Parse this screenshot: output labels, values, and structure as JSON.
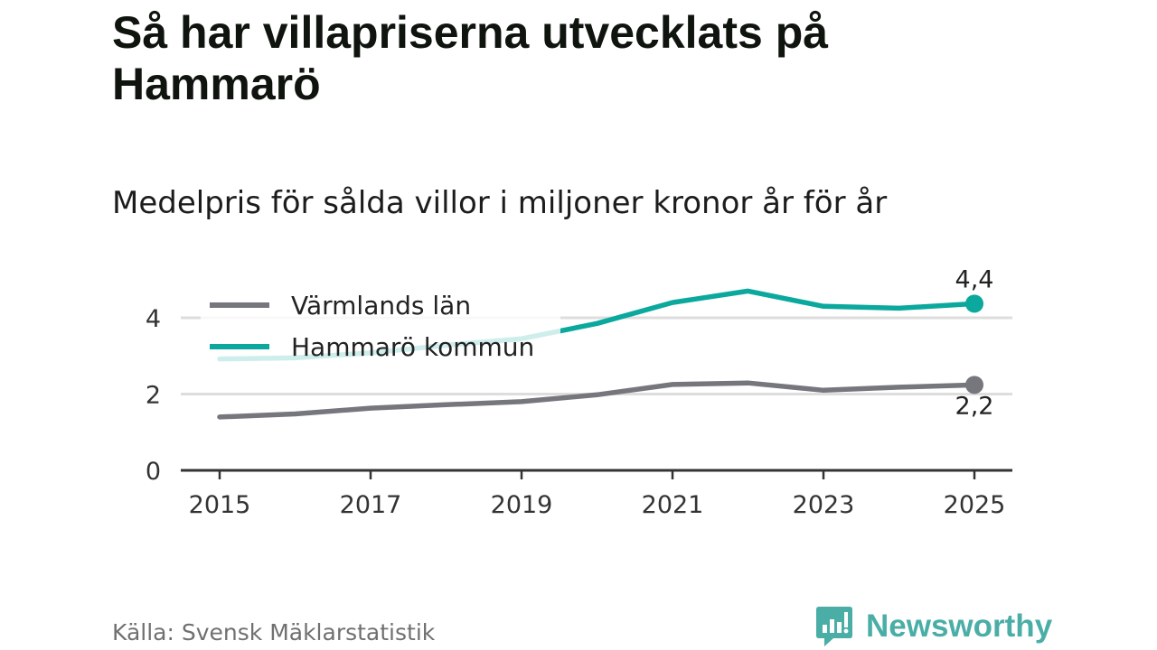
{
  "title": "Så har villapriserna utvecklats på Hammarö",
  "subtitle": "Medelpris för sålda villor i miljoner kronor år för år",
  "source": "Källa: Svensk Mäklarstatistik",
  "brand": {
    "name": "Newsworthy",
    "logo_icon": "newsworthy-logo-icon"
  },
  "colors": {
    "grey_series": "#76767d",
    "teal_series": "#0ba89d",
    "brand": "#4aaea7",
    "gridline": "#dddddd",
    "axis": "#333333"
  },
  "chart_data": {
    "type": "line",
    "title": "Så har villapriserna utvecklats på Hammarö",
    "subtitle": "Medelpris för sålda villor i miljoner kronor år för år",
    "xlabel": "",
    "ylabel": "",
    "x": [
      2015,
      2016,
      2017,
      2018,
      2019,
      2020,
      2021,
      2022,
      2023,
      2024,
      2025
    ],
    "xticks": [
      2015,
      2017,
      2019,
      2021,
      2023,
      2025
    ],
    "xtick_labels": [
      "2015",
      "2017",
      "2019",
      "2021",
      "2023",
      "2025"
    ],
    "xlim": [
      2015,
      2025
    ],
    "yticks": [
      0,
      2,
      4
    ],
    "ytick_labels": [
      "0",
      "2",
      "4"
    ],
    "ylim": [
      0,
      4.5
    ],
    "grid": true,
    "legend_position": "top-left",
    "series": [
      {
        "name": "Värmlands län",
        "color": "#76767d",
        "values": [
          1.4,
          1.48,
          1.63,
          1.72,
          1.8,
          1.98,
          2.25,
          2.29,
          2.1,
          2.18,
          2.24
        ],
        "end_label": "2,2"
      },
      {
        "name": "Hammarö kommun",
        "color": "#0ba89d",
        "values": [
          2.92,
          2.95,
          3.08,
          3.28,
          3.45,
          3.85,
          4.4,
          4.7,
          4.3,
          4.25,
          4.37
        ],
        "end_label": "4,4"
      }
    ]
  }
}
